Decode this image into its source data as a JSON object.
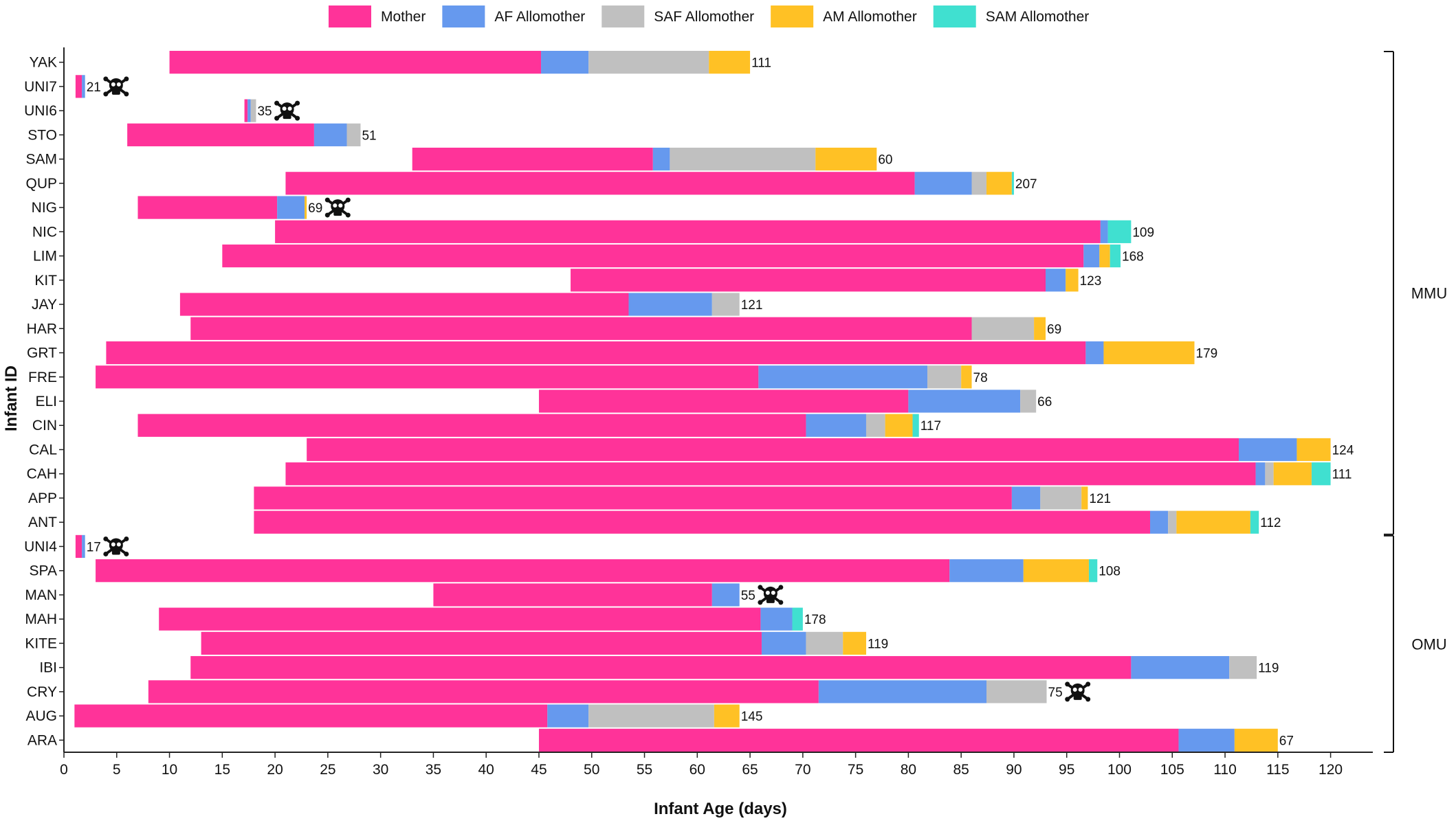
{
  "chart_data": {
    "type": "bar",
    "orientation": "horizontal",
    "stacked": true,
    "xlabel": "Infant Age (days)",
    "ylabel": "Infant ID",
    "xlim": [
      0,
      124
    ],
    "xticks": [
      0,
      5,
      10,
      15,
      20,
      25,
      30,
      35,
      40,
      45,
      50,
      55,
      60,
      65,
      70,
      75,
      80,
      85,
      90,
      95,
      100,
      105,
      110,
      115,
      120
    ],
    "grid": false,
    "legend_position": "top-center",
    "series": [
      {
        "name": "Mother",
        "color": "#FF3399"
      },
      {
        "name": "AF Allomother",
        "color": "#6699EE"
      },
      {
        "name": "SAF Allomother",
        "color": "#C0C0C0"
      },
      {
        "name": "AM Allomother",
        "color": "#FFC125"
      },
      {
        "name": "SAM Allomother",
        "color": "#40E0D0"
      }
    ],
    "groups": [
      {
        "label": "MMU",
        "first": "YAK",
        "last": "ANT"
      },
      {
        "label": "OMU",
        "first": "UNI4",
        "last": "ARA"
      }
    ],
    "rows": [
      {
        "id": "YAK",
        "start": 10,
        "segments": [
          45.2,
          49.7,
          61.1,
          65.0,
          65.0
        ],
        "label": "111",
        "died": false
      },
      {
        "id": "UNI7",
        "start": 1.1,
        "segments": [
          1.7,
          2.0,
          2.0,
          2.0,
          2.0
        ],
        "label": "21",
        "died": true
      },
      {
        "id": "UNI6",
        "start": 17.1,
        "segments": [
          17.4,
          17.7,
          18.2,
          18.2,
          18.2
        ],
        "label": "35",
        "died": true
      },
      {
        "id": "STO",
        "start": 6.0,
        "segments": [
          23.7,
          26.8,
          28.1,
          28.1,
          28.1
        ],
        "label": "51",
        "died": false
      },
      {
        "id": "SAM",
        "start": 33.0,
        "segments": [
          55.8,
          57.4,
          71.2,
          77.0,
          77.0
        ],
        "label": "60",
        "died": false
      },
      {
        "id": "QUP",
        "start": 21.0,
        "segments": [
          80.6,
          86.0,
          87.4,
          89.8,
          90.0
        ],
        "label": "207",
        "died": false
      },
      {
        "id": "NIG",
        "start": 7.0,
        "segments": [
          20.2,
          22.8,
          22.8,
          23.0,
          23.0
        ],
        "label": "69",
        "died": true
      },
      {
        "id": "NIC",
        "start": 20.0,
        "segments": [
          98.2,
          98.9,
          98.9,
          98.9,
          101.1
        ],
        "label": "109",
        "died": false
      },
      {
        "id": "LIM",
        "start": 15.0,
        "segments": [
          96.6,
          98.1,
          98.1,
          99.1,
          100.1
        ],
        "label": "168",
        "died": false
      },
      {
        "id": "KIT",
        "start": 48.0,
        "segments": [
          93.0,
          94.9,
          94.9,
          96.1,
          96.1
        ],
        "label": "123",
        "died": false
      },
      {
        "id": "JAY",
        "start": 11.0,
        "segments": [
          53.5,
          61.4,
          64.0,
          64.0,
          64.0
        ],
        "label": "121",
        "died": false
      },
      {
        "id": "HAR",
        "start": 12.0,
        "segments": [
          86.0,
          86.0,
          91.9,
          93.0,
          93.0
        ],
        "label": "69",
        "died": false
      },
      {
        "id": "GRT",
        "start": 4.0,
        "segments": [
          96.8,
          98.5,
          98.5,
          107.1,
          107.1
        ],
        "label": "179",
        "died": false
      },
      {
        "id": "FRE",
        "start": 3.0,
        "segments": [
          65.8,
          81.8,
          85.0,
          86.0,
          86.0
        ],
        "label": "78",
        "died": false
      },
      {
        "id": "ELI",
        "start": 45.0,
        "segments": [
          80.0,
          90.6,
          92.1,
          92.1,
          92.1
        ],
        "label": "66",
        "died": false
      },
      {
        "id": "CIN",
        "start": 7.0,
        "segments": [
          70.3,
          76.0,
          77.8,
          80.4,
          81.0
        ],
        "label": "117",
        "died": false
      },
      {
        "id": "CAL",
        "start": 23.0,
        "segments": [
          111.3,
          116.8,
          116.8,
          120.0,
          120.0
        ],
        "label": "124",
        "died": false
      },
      {
        "id": "CAH",
        "start": 21.0,
        "segments": [
          112.9,
          113.8,
          114.6,
          118.2,
          120.0
        ],
        "label": "111",
        "died": false
      },
      {
        "id": "APP",
        "start": 18.0,
        "segments": [
          89.8,
          92.5,
          96.4,
          97.0,
          97.0
        ],
        "label": "121",
        "died": false
      },
      {
        "id": "ANT",
        "start": 18.0,
        "segments": [
          102.9,
          104.6,
          105.4,
          112.4,
          113.2
        ],
        "label": "112",
        "died": false
      },
      {
        "id": "UNI4",
        "start": 1.1,
        "segments": [
          1.7,
          2.0,
          2.0,
          2.0,
          2.0
        ],
        "label": "17",
        "died": true
      },
      {
        "id": "SPA",
        "start": 3.0,
        "segments": [
          83.9,
          90.9,
          90.9,
          97.1,
          97.9
        ],
        "label": "108",
        "died": false
      },
      {
        "id": "MAN",
        "start": 35.0,
        "segments": [
          61.4,
          64.0,
          64.0,
          64.0,
          64.0
        ],
        "label": "55",
        "died": true
      },
      {
        "id": "MAH",
        "start": 9.0,
        "segments": [
          66.0,
          69.0,
          69.0,
          69.0,
          70.0
        ],
        "label": "178",
        "died": false
      },
      {
        "id": "KITE",
        "start": 13.0,
        "segments": [
          66.1,
          70.3,
          73.8,
          76.0,
          76.0
        ],
        "label": "119",
        "died": false
      },
      {
        "id": "IBI",
        "start": 12.0,
        "segments": [
          101.1,
          110.4,
          113.0,
          113.0,
          113.0
        ],
        "label": "119",
        "died": false
      },
      {
        "id": "CRY",
        "start": 8.0,
        "segments": [
          71.5,
          87.4,
          93.1,
          93.1,
          93.1
        ],
        "label": "75",
        "died": true
      },
      {
        "id": "AUG",
        "start": 1.0,
        "segments": [
          45.8,
          49.7,
          61.6,
          64.0,
          64.0
        ],
        "label": "145",
        "died": false
      },
      {
        "id": "ARA",
        "start": 45.0,
        "segments": [
          105.6,
          110.9,
          110.9,
          115.0,
          115.0
        ],
        "label": "67",
        "died": false
      }
    ]
  }
}
